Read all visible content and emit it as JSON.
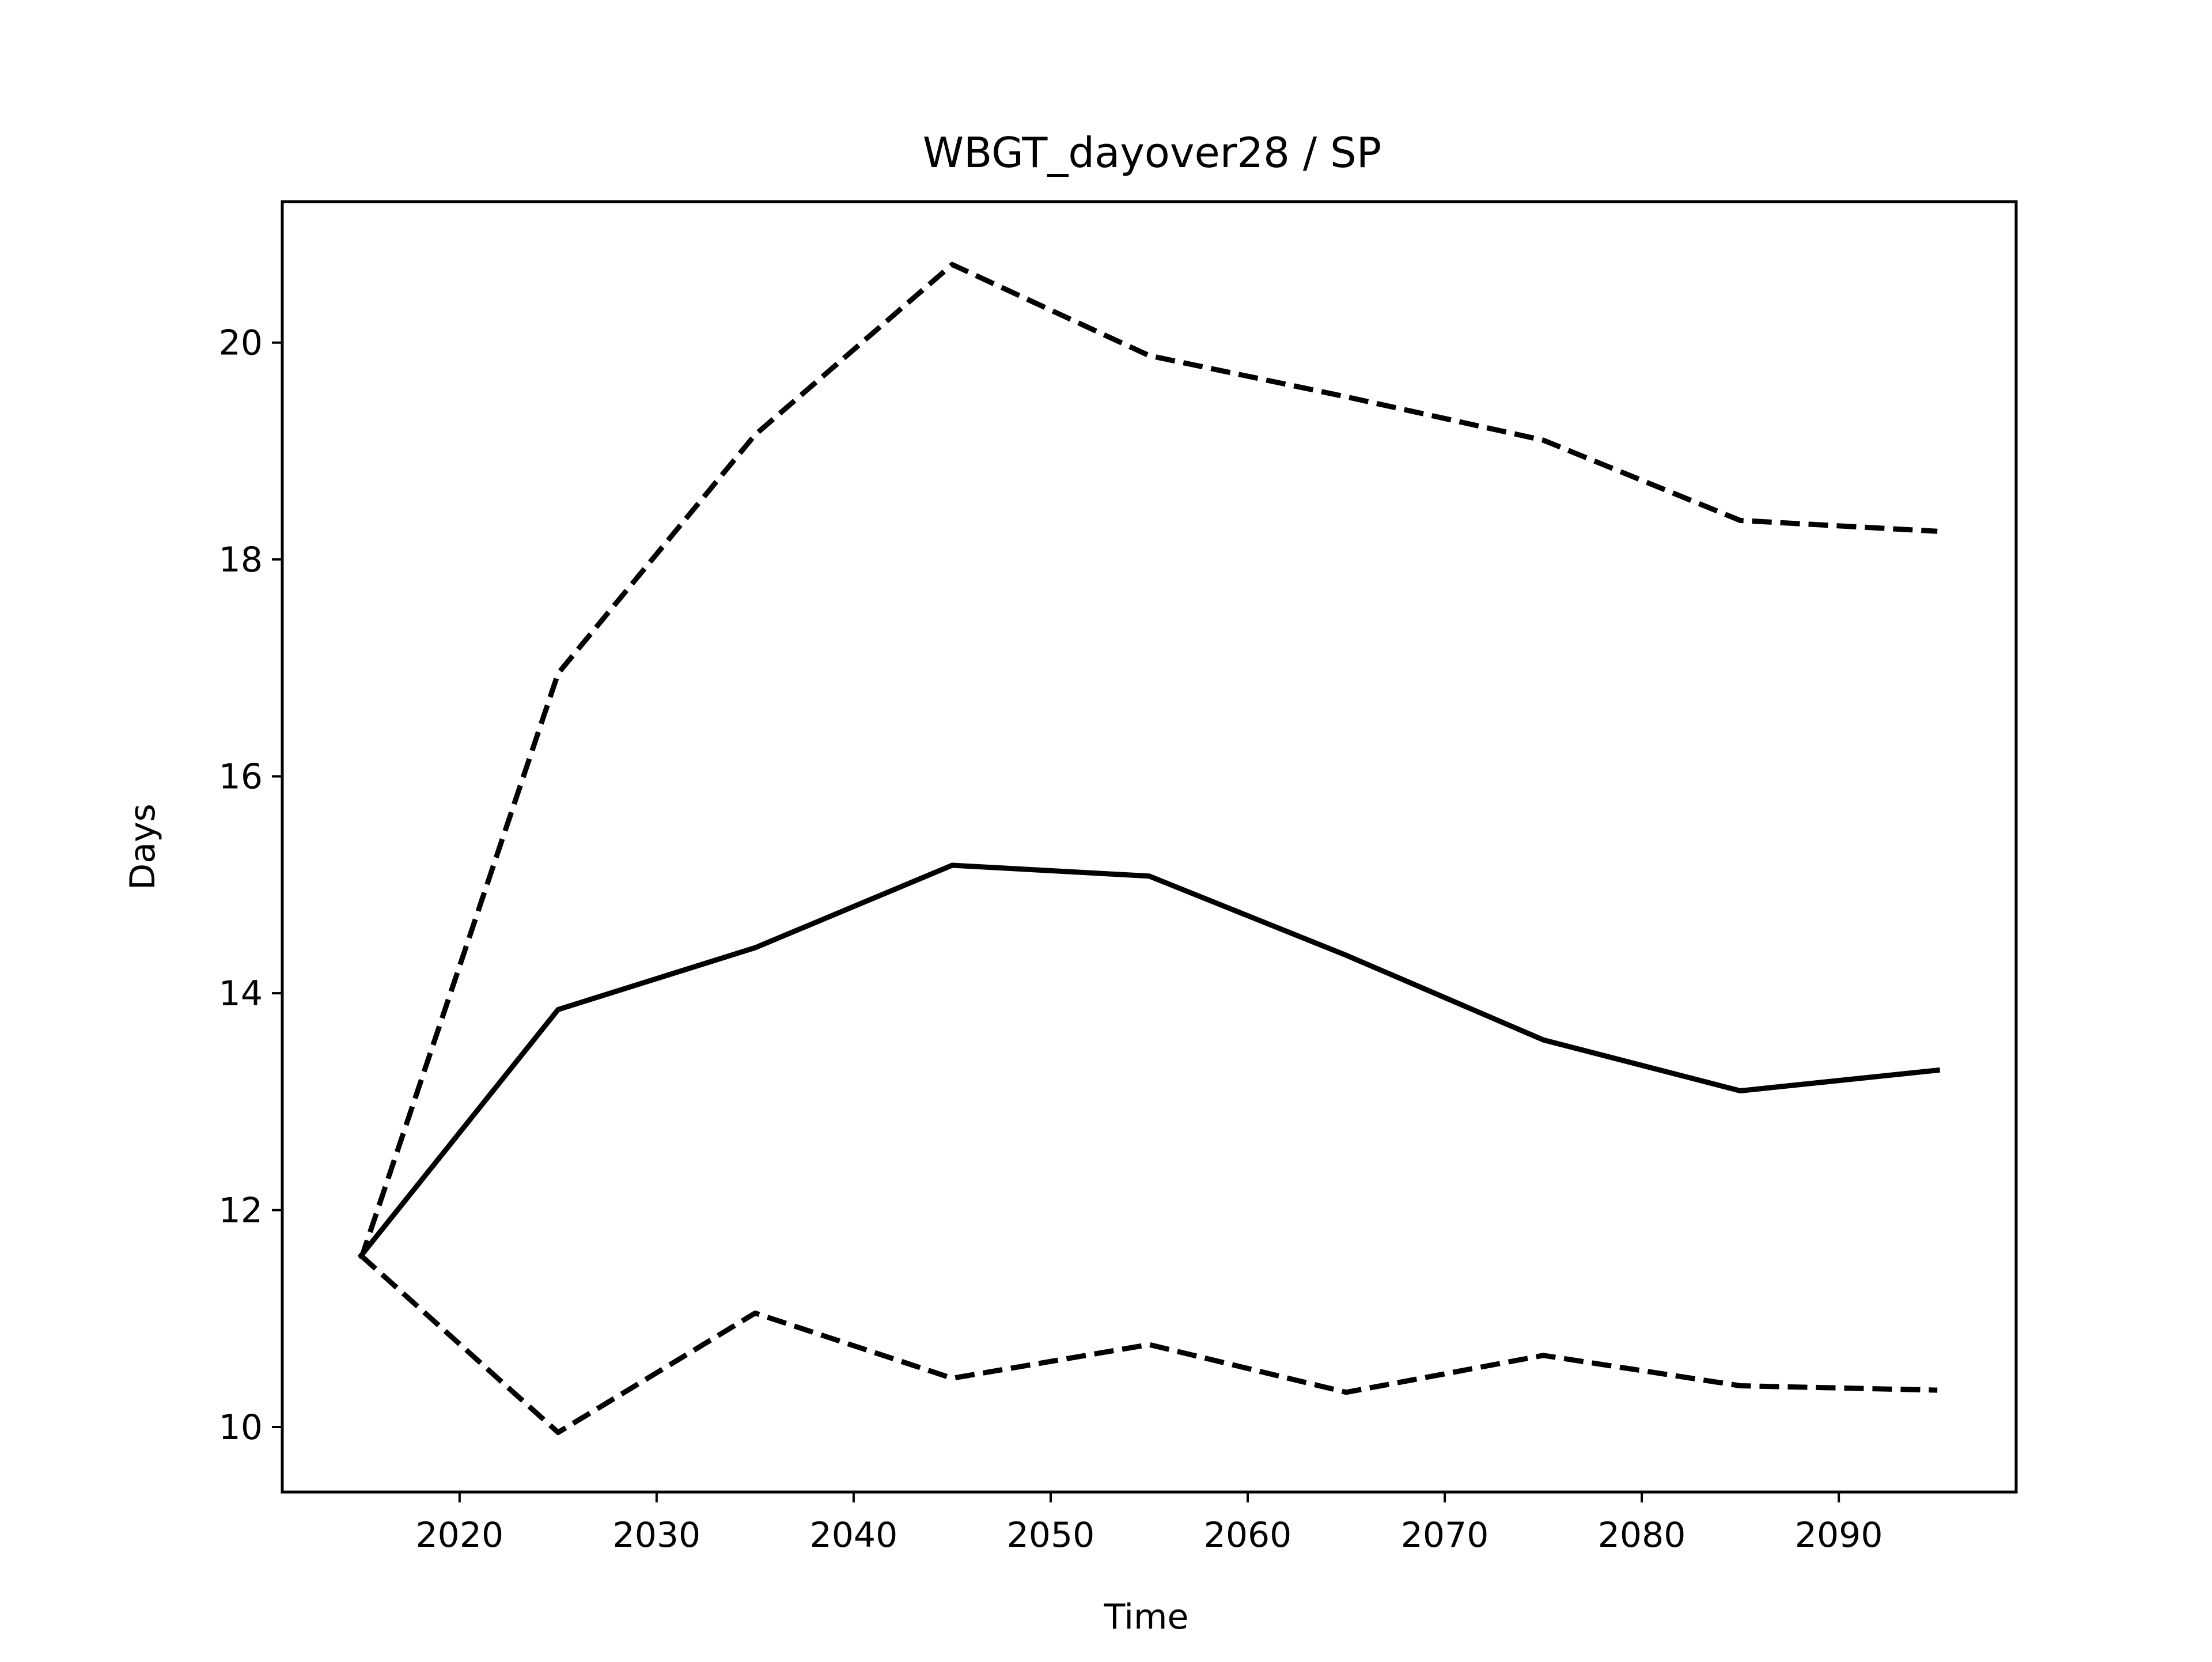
{
  "chart_data": {
    "type": "line",
    "title": "WBGT_dayover28 / SP",
    "xlabel": "Time",
    "ylabel": "Days",
    "xlim": [
      2011,
      2099
    ],
    "ylim": [
      9.4,
      21.3
    ],
    "xticks": [
      2020,
      2030,
      2040,
      2050,
      2060,
      2070,
      2080,
      2090
    ],
    "xtick_labels": [
      "2020",
      "2030",
      "2040",
      "2050",
      "2060",
      "2070",
      "2080",
      "2090"
    ],
    "yticks": [
      10,
      12,
      14,
      16,
      18,
      20
    ],
    "ytick_labels": [
      "10",
      "12",
      "14",
      "16",
      "18",
      "20"
    ],
    "grid": false,
    "x": [
      2015,
      2025,
      2035,
      2045,
      2055,
      2065,
      2075,
      2085,
      2095
    ],
    "series": [
      {
        "style": "dashed",
        "color": "#000000",
        "values": [
          11.55,
          16.95,
          19.15,
          20.72,
          19.88,
          19.5,
          19.1,
          18.36,
          18.26
        ]
      },
      {
        "style": "solid",
        "color": "#000000",
        "values": [
          11.58,
          13.85,
          14.42,
          15.18,
          15.08,
          14.35,
          13.57,
          13.1,
          13.29
        ]
      },
      {
        "style": "dashed",
        "color": "#000000",
        "values": [
          11.58,
          9.95,
          11.05,
          10.45,
          10.76,
          10.32,
          10.66,
          10.38,
          10.34
        ]
      }
    ]
  }
}
